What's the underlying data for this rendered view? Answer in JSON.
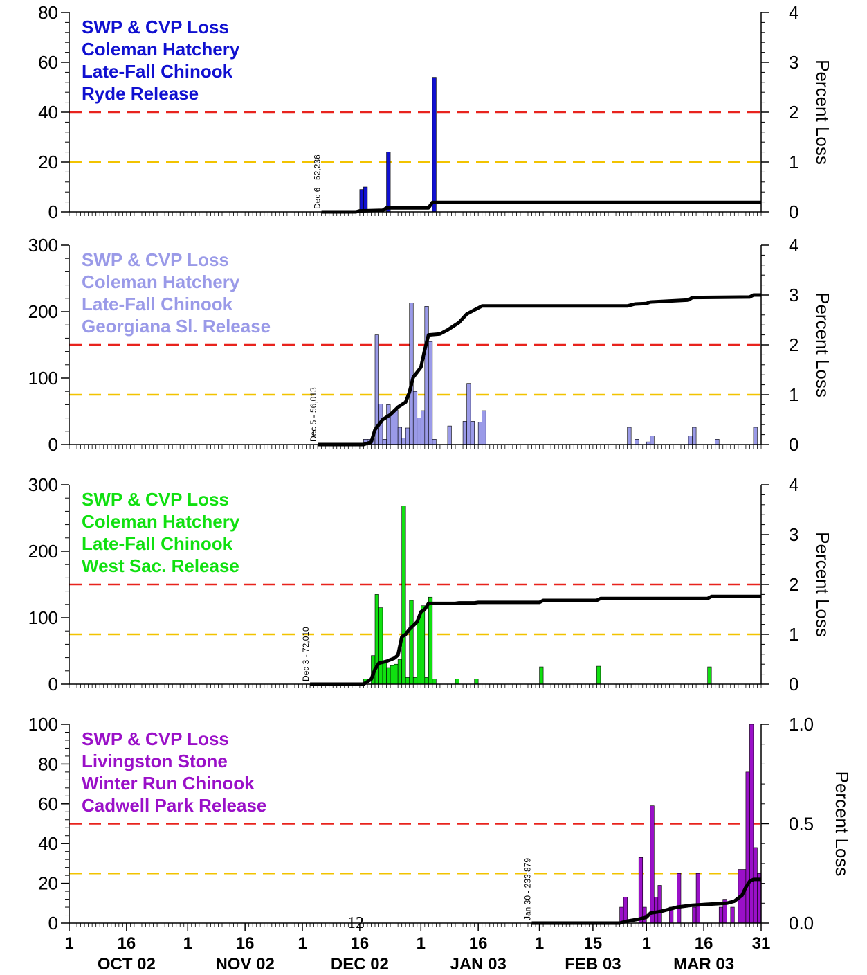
{
  "page_number": "12",
  "colors": {
    "red_line": "#e8231d",
    "yellow_line": "#f2c300",
    "cumulative_line": "#000000"
  },
  "x_axis": {
    "day_start": "2002-10-01",
    "day_end": "2003-03-31",
    "tick_labels": [
      {
        "date": "2002-10-01",
        "label": "1"
      },
      {
        "date": "2002-10-16",
        "label": "16"
      },
      {
        "date": "2002-11-01",
        "label": "1"
      },
      {
        "date": "2002-11-16",
        "label": "16"
      },
      {
        "date": "2002-12-01",
        "label": "1"
      },
      {
        "date": "2002-12-16",
        "label": "16"
      },
      {
        "date": "2003-01-01",
        "label": "1"
      },
      {
        "date": "2003-01-16",
        "label": "16"
      },
      {
        "date": "2003-02-01",
        "label": "1"
      },
      {
        "date": "2003-02-15",
        "label": "15"
      },
      {
        "date": "2003-03-01",
        "label": "1"
      },
      {
        "date": "2003-03-16",
        "label": "16"
      },
      {
        "date": "2003-03-31",
        "label": "31"
      }
    ],
    "month_labels": [
      {
        "date": "2002-10-16",
        "label": "OCT 02"
      },
      {
        "date": "2002-11-16",
        "label": "NOV 02"
      },
      {
        "date": "2002-12-16",
        "label": "DEC 02"
      },
      {
        "date": "2003-01-16",
        "label": "JAN 03"
      },
      {
        "date": "2003-02-15",
        "label": "FEB 03"
      },
      {
        "date": "2003-03-16",
        "label": "MAR 03"
      }
    ]
  },
  "chart_data": [
    {
      "type": "bar",
      "title_lines": [
        "SWP & CVP Loss",
        "Coleman Hatchery",
        "Late-Fall Chinook",
        "Ryde Release"
      ],
      "bar_color": "#1010d0",
      "title_color": "#1010d0",
      "ylim": [
        0,
        80
      ],
      "yticks": [
        0,
        20,
        40,
        60,
        80
      ],
      "y2lim": [
        0,
        4
      ],
      "y2ticks": [
        0,
        1,
        2,
        3,
        4
      ],
      "y2label": "Percent Loss",
      "red_line": 40,
      "yellow_line": 20,
      "release_annotation": {
        "date": "2002-12-06",
        "text": "Dec 6 - 52,236"
      },
      "bars": [
        {
          "date": "2002-12-16",
          "value": 9
        },
        {
          "date": "2002-12-17",
          "value": 10
        },
        {
          "date": "2002-12-23",
          "value": 24
        },
        {
          "date": "2003-01-04",
          "value": 54
        }
      ],
      "cumulative": [
        [
          "2002-12-06",
          0
        ],
        [
          "2002-12-15",
          0
        ],
        [
          "2002-12-16",
          0.02
        ],
        [
          "2002-12-22",
          0.03
        ],
        [
          "2002-12-23",
          0.08
        ],
        [
          "2003-01-03",
          0.08
        ],
        [
          "2003-01-04",
          0.19
        ],
        [
          "2003-03-31",
          0.19
        ]
      ]
    },
    {
      "type": "bar",
      "title_lines": [
        "SWP & CVP Loss",
        "Coleman Hatchery",
        "Late-Fall Chinook",
        "Georgiana Sl. Release"
      ],
      "bar_color": "#9a9ae8",
      "title_color": "#9a9ae8",
      "ylim": [
        0,
        300
      ],
      "yticks": [
        0,
        100,
        200,
        300
      ],
      "y2lim": [
        0,
        4
      ],
      "y2ticks": [
        0,
        1,
        2,
        3,
        4
      ],
      "y2label": "Percent Loss",
      "red_line": 150,
      "yellow_line": 75,
      "release_annotation": {
        "date": "2002-12-05",
        "text": "Dec 5 - 56,013"
      },
      "bars": [
        {
          "date": "2002-12-17",
          "value": 8
        },
        {
          "date": "2002-12-18",
          "value": 8
        },
        {
          "date": "2002-12-19",
          "value": 10
        },
        {
          "date": "2002-12-20",
          "value": 165
        },
        {
          "date": "2002-12-21",
          "value": 61
        },
        {
          "date": "2002-12-22",
          "value": 8
        },
        {
          "date": "2002-12-23",
          "value": 60
        },
        {
          "date": "2002-12-24",
          "value": 47
        },
        {
          "date": "2002-12-25",
          "value": 52
        },
        {
          "date": "2002-12-26",
          "value": 26
        },
        {
          "date": "2002-12-27",
          "value": 10
        },
        {
          "date": "2002-12-28",
          "value": 25
        },
        {
          "date": "2002-12-29",
          "value": 213
        },
        {
          "date": "2002-12-30",
          "value": 80
        },
        {
          "date": "2002-12-31",
          "value": 40
        },
        {
          "date": "2003-01-01",
          "value": 51
        },
        {
          "date": "2003-01-02",
          "value": 208
        },
        {
          "date": "2003-01-03",
          "value": 155
        },
        {
          "date": "2003-01-04",
          "value": 8
        },
        {
          "date": "2003-01-08",
          "value": 28
        },
        {
          "date": "2003-01-12",
          "value": 35
        },
        {
          "date": "2003-01-13",
          "value": 92
        },
        {
          "date": "2003-01-14",
          "value": 35
        },
        {
          "date": "2003-01-16",
          "value": 34
        },
        {
          "date": "2003-01-17",
          "value": 51
        },
        {
          "date": "2003-02-24",
          "value": 26
        },
        {
          "date": "2003-02-26",
          "value": 8
        },
        {
          "date": "2003-03-01",
          "value": 4
        },
        {
          "date": "2003-03-02",
          "value": 13
        },
        {
          "date": "2003-03-12",
          "value": 13
        },
        {
          "date": "2003-03-13",
          "value": 26
        },
        {
          "date": "2003-03-19",
          "value": 8
        },
        {
          "date": "2003-03-29",
          "value": 26
        }
      ],
      "cumulative": [
        [
          "2002-12-05",
          0
        ],
        [
          "2002-12-17",
          0
        ],
        [
          "2002-12-19",
          0.05
        ],
        [
          "2002-12-20",
          0.3
        ],
        [
          "2002-12-22",
          0.5
        ],
        [
          "2002-12-24",
          0.6
        ],
        [
          "2002-12-26",
          0.75
        ],
        [
          "2002-12-28",
          0.85
        ],
        [
          "2002-12-29",
          1.05
        ],
        [
          "2002-12-30",
          1.35
        ],
        [
          "2002-12-31",
          1.45
        ],
        [
          "2003-01-01",
          1.55
        ],
        [
          "2003-01-02",
          1.9
        ],
        [
          "2003-01-03",
          2.2
        ],
        [
          "2003-01-06",
          2.22
        ],
        [
          "2003-01-08",
          2.3
        ],
        [
          "2003-01-11",
          2.45
        ],
        [
          "2003-01-13",
          2.62
        ],
        [
          "2003-01-15",
          2.7
        ],
        [
          "2003-01-17",
          2.78
        ],
        [
          "2003-02-24",
          2.78
        ],
        [
          "2003-02-26",
          2.82
        ],
        [
          "2003-03-01",
          2.83
        ],
        [
          "2003-03-02",
          2.86
        ],
        [
          "2003-03-12",
          2.9
        ],
        [
          "2003-03-13",
          2.95
        ],
        [
          "2003-03-28",
          2.96
        ],
        [
          "2003-03-29",
          3.0
        ],
        [
          "2003-03-31",
          3.0
        ]
      ]
    },
    {
      "type": "bar",
      "title_lines": [
        "SWP & CVP Loss",
        "Coleman Hatchery",
        "Late-Fall Chinook",
        "West Sac. Release"
      ],
      "bar_color": "#10e010",
      "title_color": "#10e010",
      "ylim": [
        0,
        300
      ],
      "yticks": [
        0,
        100,
        200,
        300
      ],
      "y2lim": [
        0,
        4
      ],
      "y2ticks": [
        0,
        1,
        2,
        3,
        4
      ],
      "y2label": "Percent Loss",
      "red_line": 150,
      "yellow_line": 75,
      "release_annotation": {
        "date": "2002-12-03",
        "text": "Dec 3 - 72,010"
      },
      "bars": [
        {
          "date": "2002-12-17",
          "value": 8
        },
        {
          "date": "2002-12-19",
          "value": 43
        },
        {
          "date": "2002-12-20",
          "value": 135
        },
        {
          "date": "2002-12-21",
          "value": 115
        },
        {
          "date": "2002-12-22",
          "value": 33
        },
        {
          "date": "2002-12-23",
          "value": 25
        },
        {
          "date": "2002-12-24",
          "value": 28
        },
        {
          "date": "2002-12-25",
          "value": 30
        },
        {
          "date": "2002-12-26",
          "value": 37
        },
        {
          "date": "2002-12-27",
          "value": 268
        },
        {
          "date": "2002-12-28",
          "value": 10
        },
        {
          "date": "2002-12-29",
          "value": 126
        },
        {
          "date": "2002-12-30",
          "value": 10
        },
        {
          "date": "2002-12-31",
          "value": 100
        },
        {
          "date": "2003-01-01",
          "value": 118
        },
        {
          "date": "2003-01-02",
          "value": 10
        },
        {
          "date": "2003-01-03",
          "value": 131
        },
        {
          "date": "2003-01-04",
          "value": 8
        },
        {
          "date": "2003-01-10",
          "value": 8
        },
        {
          "date": "2003-01-15",
          "value": 8
        },
        {
          "date": "2003-02-01",
          "value": 26
        },
        {
          "date": "2003-02-16",
          "value": 27
        },
        {
          "date": "2003-03-17",
          "value": 26
        }
      ],
      "cumulative": [
        [
          "2002-12-03",
          0
        ],
        [
          "2002-12-17",
          0
        ],
        [
          "2002-12-19",
          0.1
        ],
        [
          "2002-12-20",
          0.3
        ],
        [
          "2002-12-21",
          0.42
        ],
        [
          "2002-12-23",
          0.46
        ],
        [
          "2002-12-25",
          0.52
        ],
        [
          "2002-12-26",
          0.58
        ],
        [
          "2002-12-27",
          0.95
        ],
        [
          "2002-12-28",
          1.0
        ],
        [
          "2002-12-29",
          1.1
        ],
        [
          "2002-12-31",
          1.25
        ],
        [
          "2003-01-01",
          1.45
        ],
        [
          "2003-01-02",
          1.5
        ],
        [
          "2003-01-03",
          1.62
        ],
        [
          "2003-01-10",
          1.62
        ],
        [
          "2003-01-11",
          1.63
        ],
        [
          "2003-01-15",
          1.63
        ],
        [
          "2003-01-16",
          1.64
        ],
        [
          "2003-02-01",
          1.64
        ],
        [
          "2003-02-02",
          1.68
        ],
        [
          "2003-02-16",
          1.68
        ],
        [
          "2003-02-17",
          1.72
        ],
        [
          "2003-03-17",
          1.72
        ],
        [
          "2003-03-18",
          1.76
        ],
        [
          "2003-03-31",
          1.76
        ]
      ]
    },
    {
      "type": "bar",
      "title_lines": [
        "SWP & CVP Loss",
        "Livingston Stone",
        "Winter Run Chinook",
        "Cadwell Park Release"
      ],
      "bar_color": "#9a10c8",
      "title_color": "#9a10c8",
      "ylim": [
        0,
        100
      ],
      "yticks": [
        0,
        20,
        40,
        60,
        80,
        100
      ],
      "y2lim": [
        0,
        1.0
      ],
      "y2ticks": [
        0.0,
        0.5,
        1.0
      ],
      "y2label": "Percent Loss",
      "red_line": 50,
      "yellow_line": 25,
      "release_annotation": {
        "date": "2003-01-30",
        "text": "Jan 30 - 233,879"
      },
      "bars": [
        {
          "date": "2003-02-22",
          "value": 8
        },
        {
          "date": "2003-02-23",
          "value": 13
        },
        {
          "date": "2003-02-27",
          "value": 33
        },
        {
          "date": "2003-02-28",
          "value": 8
        },
        {
          "date": "2003-03-02",
          "value": 59
        },
        {
          "date": "2003-03-03",
          "value": 13
        },
        {
          "date": "2003-03-04",
          "value": 19
        },
        {
          "date": "2003-03-07",
          "value": 8
        },
        {
          "date": "2003-03-09",
          "value": 25
        },
        {
          "date": "2003-03-13",
          "value": 8
        },
        {
          "date": "2003-03-14",
          "value": 25
        },
        {
          "date": "2003-03-20",
          "value": 8
        },
        {
          "date": "2003-03-21",
          "value": 12
        },
        {
          "date": "2003-03-23",
          "value": 8
        },
        {
          "date": "2003-03-25",
          "value": 27
        },
        {
          "date": "2003-03-26",
          "value": 27
        },
        {
          "date": "2003-03-27",
          "value": 76
        },
        {
          "date": "2003-03-28",
          "value": 100
        },
        {
          "date": "2003-03-29",
          "value": 38
        },
        {
          "date": "2003-03-30",
          "value": 25
        }
      ],
      "cumulative": [
        [
          "2003-01-30",
          0
        ],
        [
          "2003-02-22",
          0
        ],
        [
          "2003-02-24",
          0.01
        ],
        [
          "2003-02-27",
          0.02
        ],
        [
          "2003-03-01",
          0.03
        ],
        [
          "2003-03-02",
          0.05
        ],
        [
          "2003-03-05",
          0.06
        ],
        [
          "2003-03-09",
          0.08
        ],
        [
          "2003-03-13",
          0.09
        ],
        [
          "2003-03-22",
          0.1
        ],
        [
          "2003-03-24",
          0.11
        ],
        [
          "2003-03-26",
          0.14
        ],
        [
          "2003-03-27",
          0.18
        ],
        [
          "2003-03-28",
          0.21
        ],
        [
          "2003-03-29",
          0.22
        ],
        [
          "2003-03-31",
          0.22
        ]
      ]
    }
  ]
}
